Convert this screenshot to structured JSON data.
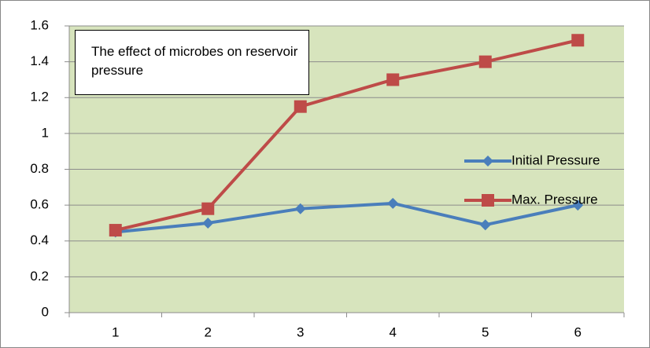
{
  "chart_data": {
    "type": "line",
    "title": "The effect of microbes on reservoir pressure",
    "categories": [
      "1",
      "2",
      "3",
      "4",
      "5",
      "6"
    ],
    "series": [
      {
        "name": "Initial Pressure",
        "color": "#4a7ebb",
        "marker": "diamond",
        "values": [
          0.45,
          0.5,
          0.58,
          0.61,
          0.49,
          0.6
        ]
      },
      {
        "name": "Max. Pressure",
        "color": "#be4b48",
        "marker": "square",
        "values": [
          0.46,
          0.58,
          1.15,
          1.3,
          1.4,
          1.52
        ]
      }
    ],
    "ylim": [
      0,
      1.6
    ],
    "yticks": [
      0,
      0.2,
      0.4,
      0.6,
      0.8,
      1,
      1.2,
      1.4,
      1.6
    ],
    "grid": true,
    "legend": "right",
    "plot_background": "#d7e4bd"
  }
}
